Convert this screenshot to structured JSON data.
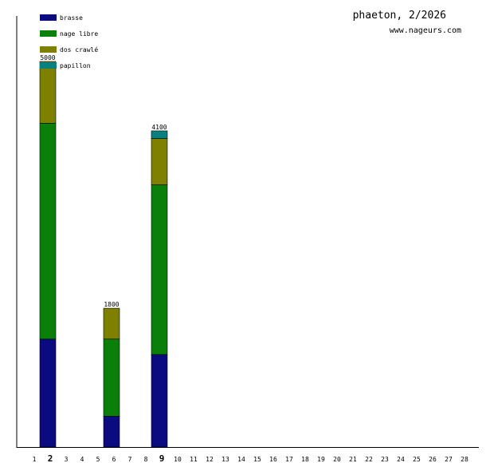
{
  "chart_data": {
    "type": "bar",
    "stacked": true,
    "title": "phaeton, 2/2026",
    "subtitle": "www.nageurs.com",
    "categories": [
      "1",
      "2",
      "3",
      "4",
      "5",
      "6",
      "7",
      "8",
      "9",
      "10",
      "11",
      "12",
      "13",
      "14",
      "15",
      "16",
      "17",
      "18",
      "19",
      "20",
      "21",
      "22",
      "23",
      "24",
      "25",
      "26",
      "27",
      "28"
    ],
    "bold_categories": [
      "2",
      "9"
    ],
    "ylim": [
      0,
      5000
    ],
    "grid": false,
    "legend_position": "top-left",
    "series": [
      {
        "name": "brasse",
        "color": "#0b0b80",
        "values": [
          0,
          1400,
          0,
          0,
          0,
          400,
          0,
          0,
          1200,
          0,
          0,
          0,
          0,
          0,
          0,
          0,
          0,
          0,
          0,
          0,
          0,
          0,
          0,
          0,
          0,
          0,
          0,
          0
        ]
      },
      {
        "name": "nage libre",
        "color": "#0a800a",
        "values": [
          0,
          2800,
          0,
          0,
          0,
          1000,
          0,
          0,
          2200,
          0,
          0,
          0,
          0,
          0,
          0,
          0,
          0,
          0,
          0,
          0,
          0,
          0,
          0,
          0,
          0,
          0,
          0,
          0
        ]
      },
      {
        "name": "dos crawlé",
        "color": "#808000",
        "values": [
          0,
          800,
          0,
          0,
          0,
          400,
          0,
          0,
          600,
          0,
          0,
          0,
          0,
          0,
          0,
          0,
          0,
          0,
          0,
          0,
          0,
          0,
          0,
          0,
          0,
          0,
          0,
          0
        ]
      },
      {
        "name": "papillon",
        "color": "#0a8080",
        "values": [
          0,
          0,
          0,
          0,
          0,
          0,
          0,
          0,
          100,
          0,
          0,
          0,
          0,
          0,
          0,
          0,
          0,
          0,
          0,
          0,
          0,
          0,
          0,
          0,
          0,
          0,
          0,
          0
        ]
      }
    ],
    "totals": [
      {
        "category": "2",
        "label": "5000"
      },
      {
        "category": "6",
        "label": "1800"
      },
      {
        "category": "9",
        "label": "4100"
      }
    ]
  }
}
